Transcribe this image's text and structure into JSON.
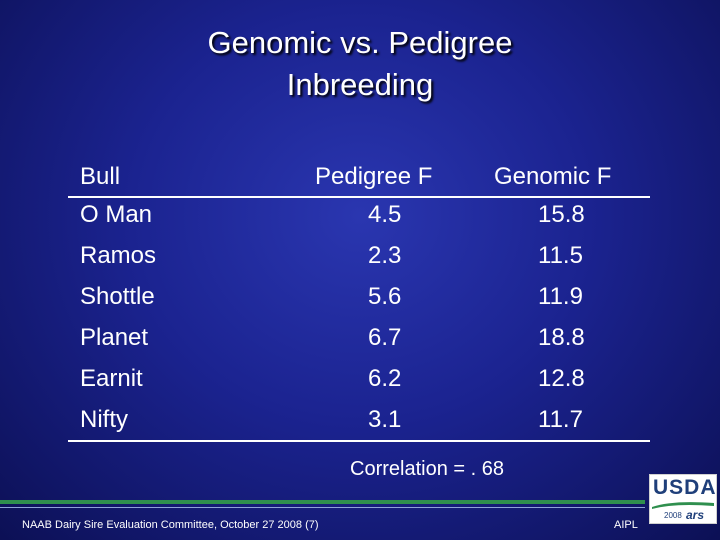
{
  "slide": {
    "title_line1": "Genomic vs. Pedigree",
    "title_line2": "Inbreeding"
  },
  "table": {
    "headers": [
      "Bull",
      "Pedigree F",
      "Genomic F"
    ],
    "rows": [
      [
        "O Man",
        "4.5",
        "15.8"
      ],
      [
        "Ramos",
        "2.3",
        "11.5"
      ],
      [
        "Shottle",
        "5.6",
        "11.9"
      ],
      [
        "Planet",
        "6.7",
        "18.8"
      ],
      [
        "Earnit",
        "6.2",
        "12.8"
      ],
      [
        "Nifty",
        "3.1",
        "11.7"
      ]
    ]
  },
  "correlation": "Correlation = . 68",
  "footer": {
    "left": "NAAB Dairy Sire Evaluation Committee, October 27 2008 (7)",
    "right": "AIPL"
  },
  "logo": {
    "text": "USDA",
    "year": "2008",
    "sub": "ars"
  },
  "colors": {
    "background": "#1b2390",
    "text": "#ffffff",
    "accent_green": "#2f8f4e"
  }
}
